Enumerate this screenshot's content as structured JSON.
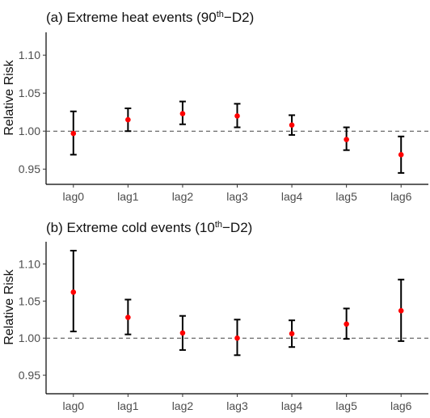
{
  "chart_data": [
    {
      "type": "scatter",
      "title": {
        "prefix": "(a) Extreme heat events (90",
        "sup": "th",
        "suffix": "−D2)"
      },
      "ylabel": "Relative Risk",
      "xlabel": "",
      "categories": [
        "lag0",
        "lag1",
        "lag2",
        "lag3",
        "lag4",
        "lag5",
        "lag6"
      ],
      "estimate": [
        0.997,
        1.015,
        1.023,
        1.02,
        1.008,
        0.989,
        0.969
      ],
      "lower": [
        0.969,
        1.0,
        1.009,
        1.005,
        0.995,
        0.975,
        0.945
      ],
      "upper": [
        1.026,
        1.03,
        1.039,
        1.036,
        1.021,
        1.005,
        0.993
      ],
      "reference_line": 1.0,
      "yticks": [
        0.95,
        1.0,
        1.05,
        1.1
      ],
      "ytick_labels": [
        "0.95",
        "1.00",
        "1.05",
        "1.10"
      ],
      "ylim": [
        0.93,
        1.13
      ],
      "grid": false,
      "point_color": "#ff0000",
      "errorbar_color": "#000000"
    },
    {
      "type": "scatter",
      "title": {
        "prefix": "(b) Extreme cold events (10",
        "sup": "th",
        "suffix": "−D2)"
      },
      "ylabel": "Relative Risk",
      "xlabel": "",
      "categories": [
        "lag0",
        "lag1",
        "lag2",
        "lag3",
        "lag4",
        "lag5",
        "lag6"
      ],
      "estimate": [
        1.062,
        1.028,
        1.007,
        1.0,
        1.006,
        1.019,
        1.037
      ],
      "lower": [
        1.009,
        1.005,
        0.984,
        0.977,
        0.988,
        0.999,
        0.996
      ],
      "upper": [
        1.118,
        1.052,
        1.03,
        1.025,
        1.024,
        1.04,
        1.079
      ],
      "reference_line": 1.0,
      "yticks": [
        0.95,
        1.0,
        1.05,
        1.1
      ],
      "ytick_labels": [
        "0.95",
        "1.00",
        "1.05",
        "1.10"
      ],
      "ylim": [
        0.925,
        1.13
      ],
      "grid": false,
      "point_color": "#ff0000",
      "errorbar_color": "#000000"
    }
  ]
}
